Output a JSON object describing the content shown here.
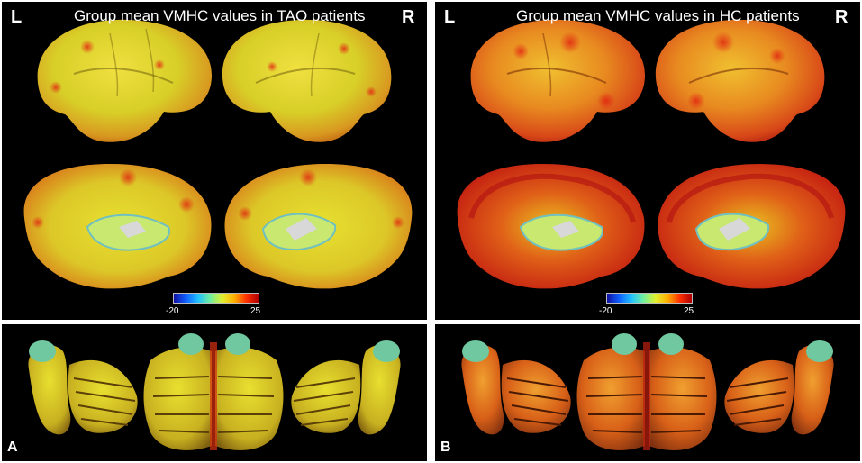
{
  "panels": {
    "A": {
      "title": "Group mean VMHC values in TAO patients",
      "left_label": "L",
      "right_label": "R",
      "panel_letter": "A",
      "colorbar_min": "-20",
      "colorbar_max": "25"
    },
    "B": {
      "title": "Group mean VMHC values in HC patients",
      "left_label": "L",
      "right_label": "R",
      "panel_letter": "B",
      "colorbar_min": "-20",
      "colorbar_max": "25"
    }
  },
  "colors": {
    "background": "#000000",
    "separator": "#ffffff",
    "brain_low": "#d8d820",
    "brain_high": "#e02010"
  }
}
